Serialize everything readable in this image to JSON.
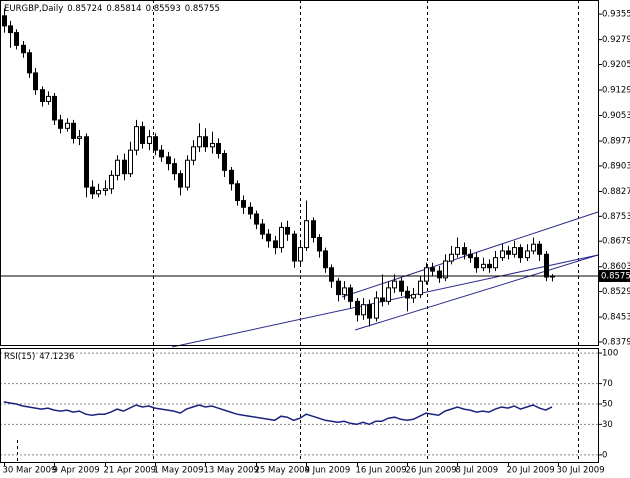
{
  "chart_data": [
    {
      "type": "candlestick",
      "title": "EURGBP,Daily",
      "open": [
        0.935,
        0.932,
        0.93,
        0.9262,
        0.924,
        0.918,
        0.913,
        0.9095,
        0.911,
        0.904,
        0.9015,
        0.903,
        0.8985,
        0.899,
        0.884,
        0.882,
        0.883,
        0.8835,
        0.8875,
        0.892,
        0.888,
        0.895,
        0.902,
        0.897,
        0.899,
        0.895,
        0.893,
        0.891,
        0.888,
        0.884,
        0.892,
        0.896,
        0.899,
        0.896,
        0.897,
        0.894,
        0.889,
        0.885,
        0.88,
        0.878,
        0.876,
        0.873,
        0.87,
        0.868,
        0.866,
        0.872,
        0.87,
        0.862,
        0.866,
        0.874,
        0.869,
        0.865,
        0.86,
        0.856,
        0.852,
        0.854,
        0.85,
        0.846,
        0.849,
        0.845,
        0.851,
        0.85,
        0.854,
        0.856,
        0.853,
        0.851,
        0.852,
        0.856,
        0.86,
        0.859,
        0.857,
        0.862,
        0.864,
        0.866,
        0.864,
        0.863,
        0.86,
        0.861,
        0.86,
        0.863,
        0.865,
        0.864,
        0.866,
        0.863,
        0.865,
        0.867,
        0.864,
        0.85724
      ],
      "high": [
        0.9372,
        0.9335,
        0.931,
        0.9275,
        0.925,
        0.9195,
        0.914,
        0.9125,
        0.912,
        0.9055,
        0.9045,
        0.904,
        0.901,
        0.9,
        0.886,
        0.885,
        0.886,
        0.889,
        0.8935,
        0.894,
        0.8975,
        0.904,
        0.9035,
        0.901,
        0.9,
        0.8965,
        0.8945,
        0.8925,
        0.889,
        0.8935,
        0.898,
        0.903,
        0.9015,
        0.9005,
        0.8985,
        0.895,
        0.89,
        0.886,
        0.8815,
        0.8795,
        0.877,
        0.8745,
        0.8715,
        0.8695,
        0.8735,
        0.874,
        0.871,
        0.868,
        0.88,
        0.875,
        0.87,
        0.866,
        0.861,
        0.857,
        0.856,
        0.855,
        0.851,
        0.851,
        0.8505,
        0.853,
        0.858,
        0.856,
        0.858,
        0.857,
        0.8545,
        0.854,
        0.8575,
        0.8615,
        0.8615,
        0.8605,
        0.864,
        0.8665,
        0.869,
        0.8675,
        0.8655,
        0.8645,
        0.863,
        0.8625,
        0.865,
        0.867,
        0.8665,
        0.868,
        0.867,
        0.867,
        0.869,
        0.868,
        0.865,
        0.85814
      ],
      "low": [
        0.93,
        0.9255,
        0.925,
        0.9225,
        0.9165,
        0.9115,
        0.908,
        0.9085,
        0.9025,
        0.9,
        0.9005,
        0.897,
        0.8965,
        0.881,
        0.8805,
        0.881,
        0.8815,
        0.882,
        0.886,
        0.886,
        0.887,
        0.8935,
        0.8955,
        0.895,
        0.8935,
        0.8915,
        0.889,
        0.886,
        0.8815,
        0.883,
        0.8905,
        0.8945,
        0.8945,
        0.894,
        0.8925,
        0.887,
        0.883,
        0.8785,
        0.876,
        0.8745,
        0.8715,
        0.8685,
        0.866,
        0.864,
        0.8645,
        0.868,
        0.86,
        0.8605,
        0.865,
        0.8675,
        0.863,
        0.8585,
        0.854,
        0.85,
        0.8505,
        0.848,
        0.844,
        0.8445,
        0.8425,
        0.844,
        0.8485,
        0.849,
        0.8525,
        0.8515,
        0.847,
        0.8495,
        0.851,
        0.855,
        0.8575,
        0.8555,
        0.856,
        0.861,
        0.863,
        0.8625,
        0.8615,
        0.8585,
        0.859,
        0.8585,
        0.859,
        0.862,
        0.8625,
        0.863,
        0.8615,
        0.862,
        0.864,
        0.862,
        0.856,
        0.85593
      ],
      "close": [
        0.932,
        0.93,
        0.9262,
        0.924,
        0.918,
        0.913,
        0.9095,
        0.911,
        0.904,
        0.9015,
        0.903,
        0.8985,
        0.899,
        0.884,
        0.882,
        0.883,
        0.8835,
        0.8875,
        0.892,
        0.888,
        0.895,
        0.902,
        0.897,
        0.899,
        0.895,
        0.893,
        0.891,
        0.888,
        0.884,
        0.892,
        0.896,
        0.899,
        0.896,
        0.897,
        0.894,
        0.889,
        0.885,
        0.88,
        0.878,
        0.876,
        0.873,
        0.87,
        0.868,
        0.866,
        0.872,
        0.87,
        0.862,
        0.866,
        0.874,
        0.869,
        0.865,
        0.86,
        0.856,
        0.852,
        0.854,
        0.85,
        0.846,
        0.849,
        0.845,
        0.851,
        0.85,
        0.854,
        0.856,
        0.853,
        0.851,
        0.852,
        0.856,
        0.86,
        0.859,
        0.857,
        0.862,
        0.864,
        0.866,
        0.864,
        0.863,
        0.86,
        0.861,
        0.86,
        0.863,
        0.865,
        0.864,
        0.866,
        0.863,
        0.865,
        0.867,
        0.864,
        0.85724,
        0.85755
      ],
      "ylim": [
        0.837,
        0.9397
      ],
      "yticks": [
        {
          "value": 0.9355,
          "label": "0.93550"
        },
        {
          "value": 0.9279,
          "label": "0.92790"
        },
        {
          "value": 0.9205,
          "label": "0.92050"
        },
        {
          "value": 0.9129,
          "label": "0.91290"
        },
        {
          "value": 0.9053,
          "label": "0.90530"
        },
        {
          "value": 0.8977,
          "label": "0.89770"
        },
        {
          "value": 0.8903,
          "label": "0.89030"
        },
        {
          "value": 0.8827,
          "label": "0.88270"
        },
        {
          "value": 0.8753,
          "label": "0.87530"
        },
        {
          "value": 0.8679,
          "label": "0.86790"
        },
        {
          "value": 0.8603,
          "label": "0.86030"
        },
        {
          "value": 0.8529,
          "label": "0.85290"
        },
        {
          "value": 0.8453,
          "label": "0.84530"
        },
        {
          "value": 0.8379,
          "label": "0.83790"
        }
      ]
    },
    {
      "type": "line",
      "title": "RSI(15)",
      "color": "#1a237e",
      "values": [
        52,
        51,
        50,
        48,
        47,
        46,
        45,
        46,
        44,
        43,
        44,
        42,
        43,
        40,
        39,
        40,
        40,
        42,
        45,
        43,
        46,
        49,
        47,
        48,
        46,
        45,
        44,
        43,
        41,
        45,
        47,
        49,
        47,
        48,
        46,
        44,
        42,
        40,
        39,
        38,
        37,
        36,
        35,
        34,
        38,
        37,
        34,
        36,
        40,
        38,
        36,
        34,
        33,
        32,
        33,
        31,
        30,
        32,
        30,
        33,
        33,
        36,
        37,
        35,
        34,
        35,
        38,
        41,
        40,
        39,
        43,
        45,
        47,
        45,
        44,
        42,
        43,
        42,
        45,
        47,
        46,
        48,
        45,
        47,
        49,
        46,
        44,
        47.1236
      ],
      "ylim": [
        -7,
        105
      ],
      "yticks": [
        100,
        70,
        50,
        30,
        0
      ],
      "xlim": [
        -0.6,
        94.3
      ],
      "xticks": [
        {
          "value": 0,
          "label": "30 Mar 2009"
        },
        {
          "value": 8,
          "label": "9 Apr 2009"
        },
        {
          "value": 16,
          "label": "21 Apr 2009"
        },
        {
          "value": 24,
          "label": "1 May 2009"
        },
        {
          "value": 32,
          "label": "13 May 2009"
        },
        {
          "value": 40,
          "label": "25 May 2009"
        },
        {
          "value": 48,
          "label": "4 Jun 2009"
        },
        {
          "value": 56,
          "label": "16 Jun 2009"
        },
        {
          "value": 64,
          "label": "26 Jun 2009"
        },
        {
          "value": 72,
          "label": "8 Jul 2009"
        },
        {
          "value": 80,
          "label": "20 Jul 2009"
        },
        {
          "value": 88,
          "label": "30 Jul 2009"
        }
      ]
    }
  ]
}
